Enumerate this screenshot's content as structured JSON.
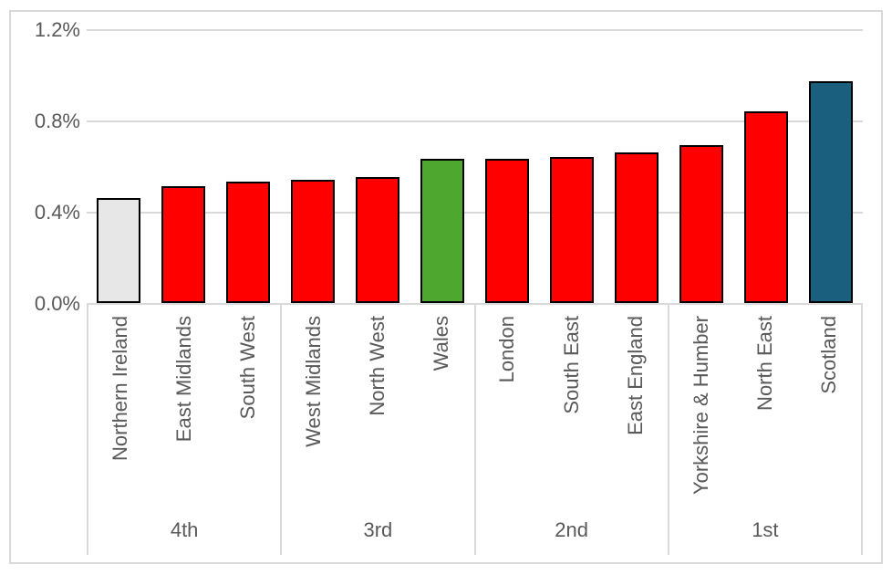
{
  "colors": {
    "bar_default": "#FF0000",
    "bar_lowest": "#E7E7E7",
    "bar_wales": "#4EA72E",
    "bar_scotland": "#1A5F7E",
    "bar_border": "#000000",
    "gridline": "#D9D9D9",
    "axis_text": "#595959",
    "chart_border": "#D9D9D9"
  },
  "chart_data": {
    "type": "bar",
    "title": "",
    "xlabel": "",
    "ylabel": "",
    "unit": "%",
    "ylim": [
      0,
      1.2
    ],
    "grid": true,
    "legend": false,
    "y_ticks": [
      {
        "label": "1.2%",
        "value": 1.2
      },
      {
        "label": "0.8%",
        "value": 0.8
      },
      {
        "label": "0.4%",
        "value": 0.4
      },
      {
        "label": "0.0%",
        "value": 0.0
      }
    ],
    "categories": [
      "Northern Ireland",
      "East Midlands",
      "South West",
      "West Midlands",
      "North West",
      "Wales",
      "London",
      "South East",
      "East England",
      "Yorkshire & Humber",
      "North East",
      "Scotland"
    ],
    "values": [
      0.46,
      0.51,
      0.53,
      0.54,
      0.55,
      0.63,
      0.63,
      0.64,
      0.66,
      0.69,
      0.84,
      0.97
    ],
    "bar_colors": [
      "#E7E7E7",
      "#FF0000",
      "#FF0000",
      "#FF0000",
      "#FF0000",
      "#4EA72E",
      "#FF0000",
      "#FF0000",
      "#FF0000",
      "#FF0000",
      "#FF0000",
      "#1A5F7E"
    ],
    "groups": [
      {
        "label": "4th",
        "count": 3
      },
      {
        "label": "3rd",
        "count": 3
      },
      {
        "label": "2nd",
        "count": 3
      },
      {
        "label": "1st",
        "count": 3
      }
    ]
  }
}
